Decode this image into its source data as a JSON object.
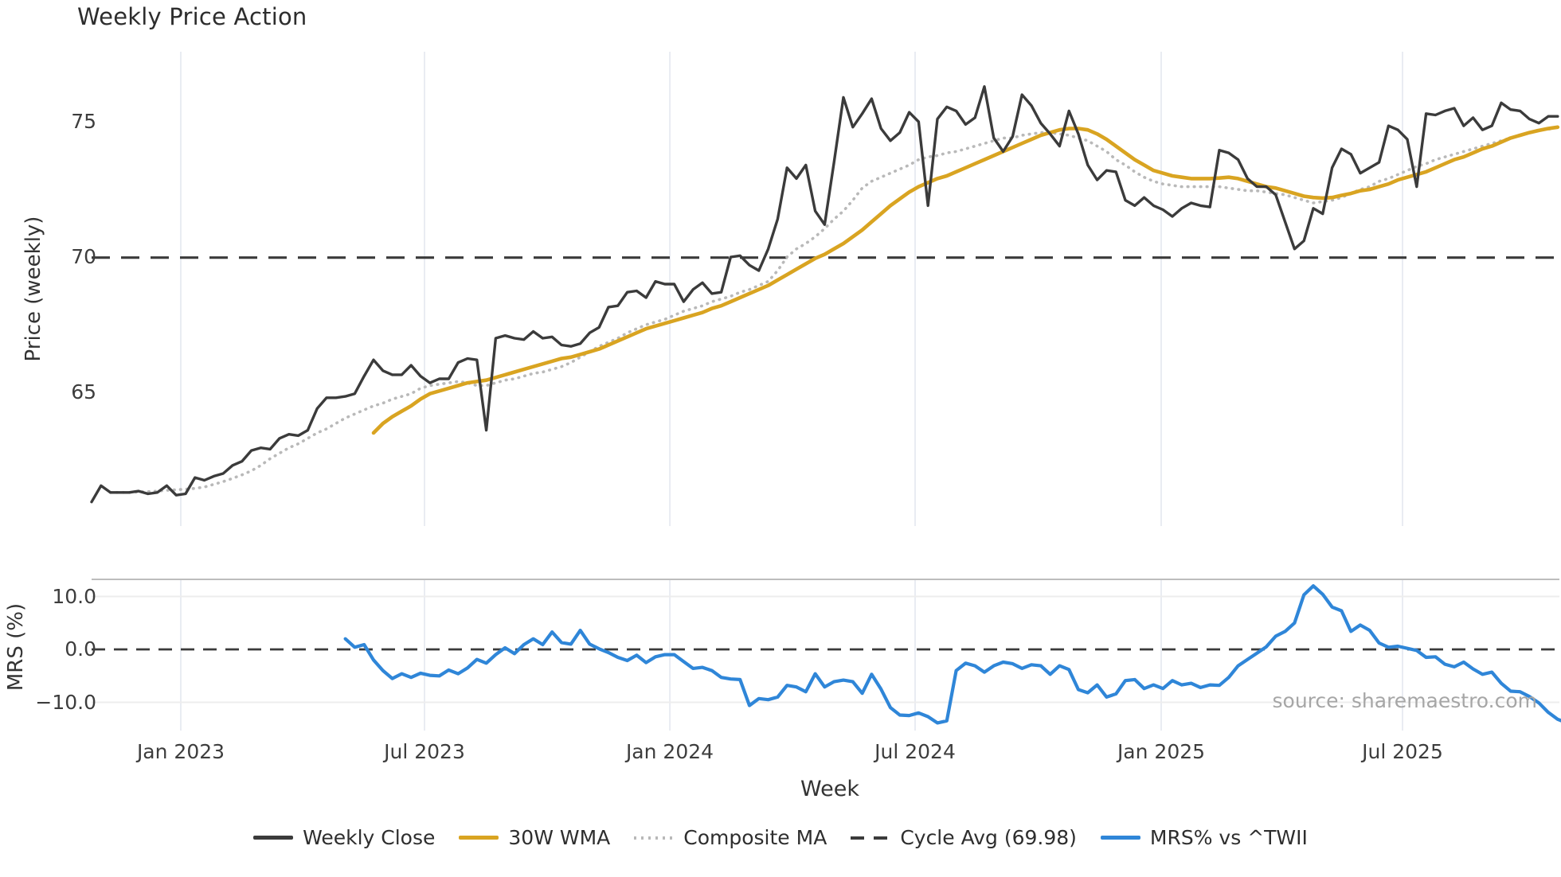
{
  "title": "Weekly Price Action",
  "source_note": "source: sharemaestro.com",
  "colors": {
    "close": "#3b3b3b",
    "wma": "#D9A421",
    "composite": "#b9b9b9",
    "cycle_dash": "#3b3b3b",
    "mrs": "#2F86D8",
    "grid_vertical": "#e9ecf2",
    "grid_horizontal": "#ededed",
    "spine": "#bdbdbd",
    "text": "#3d3d3d"
  },
  "x_axis": {
    "label": "Week",
    "ticks": [
      {
        "label": "Jan 2023",
        "week": 9.49
      },
      {
        "label": "Jul 2023",
        "week": 35.42
      },
      {
        "label": "Jan 2024",
        "week": 61.53
      },
      {
        "label": "Jul 2024",
        "week": 87.63
      },
      {
        "label": "Jan 2025",
        "week": 113.81
      },
      {
        "label": "Jul 2025",
        "week": 139.49
      }
    ]
  },
  "legend": [
    {
      "label": "Weekly Close",
      "swatch": "solid-dark"
    },
    {
      "label": "30W WMA",
      "swatch": "solid-gold"
    },
    {
      "label": "Composite MA",
      "swatch": "dotted-gray"
    },
    {
      "label": "Cycle Avg (69.98)",
      "swatch": "dashed-dark"
    },
    {
      "label": "MRS% vs ^TWII",
      "swatch": "solid-blue"
    }
  ],
  "chart_data": [
    {
      "type": "line",
      "name": "price-panel",
      "ylabel": "Price (weekly)",
      "ylim": [
        60.0,
        77.6
      ],
      "grid": "vertical-only",
      "y_ticks": [
        {
          "label": "75",
          "value": 75
        },
        {
          "label": "70",
          "value": 70
        },
        {
          "label": "65",
          "value": 65
        }
      ],
      "reference_line": {
        "name": "Cycle Avg",
        "value": 69.98
      },
      "series": [
        {
          "name": "Composite MA",
          "style": "dotted",
          "color": "#b9b9b9",
          "width": 3.6,
          "start_week": 2,
          "values": [
            61.3,
            61.3,
            61.3,
            61.32,
            61.33,
            61.35,
            61.38,
            61.4,
            61.42,
            61.45,
            61.5,
            61.6,
            61.7,
            61.82,
            61.95,
            62.1,
            62.3,
            62.55,
            62.75,
            62.95,
            63.1,
            63.3,
            63.5,
            63.65,
            63.85,
            64.05,
            64.2,
            64.35,
            64.5,
            64.6,
            64.75,
            64.85,
            64.95,
            65.15,
            65.25,
            65.3,
            65.35,
            65.4,
            65.35,
            65.25,
            65.25,
            65.35,
            65.45,
            65.5,
            65.6,
            65.7,
            65.75,
            65.85,
            65.95,
            66.1,
            66.3,
            66.5,
            66.7,
            66.85,
            67.0,
            67.2,
            67.35,
            67.5,
            67.6,
            67.7,
            67.85,
            68.0,
            68.1,
            68.2,
            68.35,
            68.45,
            68.55,
            68.7,
            68.8,
            68.95,
            69.1,
            69.5,
            70.0,
            70.3,
            70.5,
            70.75,
            71.05,
            71.4,
            71.7,
            72.1,
            72.55,
            72.8,
            72.95,
            73.1,
            73.25,
            73.4,
            73.6,
            73.7,
            73.75,
            73.85,
            73.9,
            74.0,
            74.1,
            74.2,
            74.3,
            74.4,
            74.4,
            74.5,
            74.55,
            74.6,
            74.6,
            74.55,
            74.5,
            74.4,
            74.3,
            74.1,
            73.9,
            73.6,
            73.4,
            73.15,
            72.95,
            72.8,
            72.7,
            72.65,
            72.6,
            72.6,
            72.6,
            72.6,
            72.6,
            72.55,
            72.5,
            72.45,
            72.45,
            72.4,
            72.35,
            72.3,
            72.2,
            72.1,
            72.0,
            72.05,
            72.1,
            72.2,
            72.35,
            72.5,
            72.6,
            72.8,
            72.9,
            73.05,
            73.2,
            73.35,
            73.45,
            73.6,
            73.7,
            73.8,
            73.9,
            74.0,
            74.1,
            74.2,
            74.3,
            74.4,
            74.5,
            74.6,
            74.7,
            74.72,
            74.8
          ]
        },
        {
          "name": "30W WMA",
          "style": "solid",
          "color": "#D9A421",
          "width": 4.6,
          "start_week": 30,
          "values": [
            63.5,
            63.85,
            64.1,
            64.3,
            64.5,
            64.75,
            64.95,
            65.05,
            65.15,
            65.25,
            65.35,
            65.4,
            65.45,
            65.55,
            65.65,
            65.75,
            65.85,
            65.95,
            66.05,
            66.15,
            66.25,
            66.3,
            66.4,
            66.5,
            66.6,
            66.75,
            66.9,
            67.05,
            67.2,
            67.35,
            67.45,
            67.55,
            67.65,
            67.75,
            67.85,
            67.95,
            68.1,
            68.2,
            68.35,
            68.5,
            68.65,
            68.8,
            68.95,
            69.15,
            69.35,
            69.55,
            69.75,
            69.95,
            70.1,
            70.3,
            70.5,
            70.75,
            71.0,
            71.3,
            71.6,
            71.9,
            72.15,
            72.4,
            72.6,
            72.75,
            72.9,
            73.0,
            73.15,
            73.3,
            73.45,
            73.6,
            73.75,
            73.9,
            74.05,
            74.2,
            74.35,
            74.5,
            74.6,
            74.7,
            74.75,
            74.75,
            74.7,
            74.55,
            74.35,
            74.1,
            73.85,
            73.6,
            73.4,
            73.2,
            73.1,
            73.0,
            72.95,
            72.9,
            72.9,
            72.9,
            72.92,
            72.95,
            72.9,
            72.8,
            72.7,
            72.6,
            72.55,
            72.45,
            72.35,
            72.25,
            72.2,
            72.18,
            72.2,
            72.28,
            72.35,
            72.45,
            72.5,
            72.6,
            72.7,
            72.85,
            72.95,
            73.05,
            73.15,
            73.3,
            73.45,
            73.6,
            73.7,
            73.85,
            74.0,
            74.1,
            74.25,
            74.4,
            74.5,
            74.6,
            74.68,
            74.75,
            74.8
          ]
        },
        {
          "name": "Weekly Close",
          "style": "solid",
          "color": "#3b3b3b",
          "width": 3.4,
          "start_week": 0,
          "values": [
            60.95,
            61.55,
            61.3,
            61.3,
            61.3,
            61.35,
            61.25,
            61.3,
            61.55,
            61.2,
            61.25,
            61.85,
            61.75,
            61.9,
            62.0,
            62.3,
            62.45,
            62.85,
            62.95,
            62.9,
            63.3,
            63.45,
            63.4,
            63.6,
            64.4,
            64.8,
            64.8,
            64.85,
            64.95,
            65.6,
            66.2,
            65.8,
            65.65,
            65.65,
            66.0,
            65.6,
            65.35,
            65.5,
            65.5,
            66.1,
            66.25,
            66.2,
            63.6,
            67.0,
            67.1,
            67.0,
            66.95,
            67.25,
            67.0,
            67.05,
            66.75,
            66.7,
            66.8,
            67.2,
            67.4,
            68.15,
            68.2,
            68.7,
            68.75,
            68.5,
            69.1,
            69.0,
            69.0,
            68.35,
            68.8,
            69.05,
            68.65,
            68.7,
            70.0,
            70.05,
            69.7,
            69.5,
            70.3,
            71.4,
            73.3,
            72.9,
            73.4,
            71.7,
            71.2,
            73.5,
            75.9,
            74.8,
            75.3,
            75.85,
            74.75,
            74.3,
            74.6,
            75.35,
            75.0,
            71.9,
            75.1,
            75.55,
            75.4,
            74.9,
            75.15,
            76.3,
            74.4,
            73.9,
            74.45,
            76.0,
            75.6,
            74.95,
            74.55,
            74.1,
            75.4,
            74.55,
            73.4,
            72.85,
            73.2,
            73.15,
            72.1,
            71.9,
            72.2,
            71.9,
            71.75,
            71.5,
            71.8,
            72.0,
            71.9,
            71.85,
            73.95,
            73.85,
            73.6,
            72.9,
            72.6,
            72.6,
            72.3,
            71.3,
            70.3,
            70.6,
            71.8,
            71.6,
            73.3,
            74.0,
            73.8,
            73.1,
            73.3,
            73.5,
            74.85,
            74.7,
            74.35,
            72.6,
            75.3,
            75.25,
            75.4,
            75.5,
            74.85,
            75.15,
            74.7,
            74.85,
            75.7,
            75.45,
            75.4,
            75.1,
            74.95,
            75.2,
            75.2
          ]
        }
      ]
    },
    {
      "type": "line",
      "name": "mrs-panel",
      "ylabel": "MRS (%)",
      "ylim": [
        -15.5,
        13.2
      ],
      "grid": "horizontal-and-vertical",
      "y_ticks": [
        {
          "label": "10.0",
          "value": 10,
          "gridline": true
        },
        {
          "label": "0.0",
          "value": 0,
          "gridline": false
        },
        {
          "label": "−10.0",
          "value": -10,
          "gridline": true
        }
      ],
      "reference_line": {
        "name": "zero",
        "value": 0
      },
      "series": [
        {
          "name": "MRS% vs ^TWII",
          "style": "solid",
          "color": "#2F86D8",
          "width": 4.2,
          "start_week": 27,
          "values": [
            2.0,
            0.4,
            0.9,
            -2.0,
            -4.0,
            -5.5,
            -4.6,
            -5.3,
            -4.5,
            -4.9,
            -5.0,
            -3.9,
            -4.6,
            -3.5,
            -1.9,
            -2.6,
            -1.0,
            0.3,
            -0.8,
            0.9,
            2.0,
            0.9,
            3.3,
            1.3,
            1.0,
            3.6,
            1.0,
            0.1,
            -0.6,
            -1.5,
            -2.1,
            -1.1,
            -2.5,
            -1.4,
            -1.0,
            -1.0,
            -2.3,
            -3.6,
            -3.4,
            -4.0,
            -5.3,
            -5.6,
            -5.7,
            -10.6,
            -9.3,
            -9.5,
            -9.0,
            -6.8,
            -7.1,
            -8.0,
            -4.6,
            -7.1,
            -6.1,
            -5.8,
            -6.1,
            -8.3,
            -4.7,
            -7.5,
            -11.0,
            -12.4,
            -12.5,
            -12.0,
            -12.7,
            -13.9,
            -13.5,
            -4.0,
            -2.6,
            -3.1,
            -4.3,
            -3.1,
            -2.4,
            -2.7,
            -3.6,
            -2.9,
            -3.1,
            -4.7,
            -3.1,
            -3.8,
            -7.6,
            -8.2,
            -6.7,
            -9.0,
            -8.4,
            -5.9,
            -5.7,
            -7.4,
            -6.7,
            -7.4,
            -5.9,
            -6.7,
            -6.4,
            -7.2,
            -6.7,
            -6.8,
            -5.3,
            -3.1,
            -1.9,
            -0.7,
            0.5,
            2.5,
            3.4,
            5.0,
            10.3,
            12.0,
            10.4,
            8.0,
            7.3,
            3.4,
            4.6,
            3.6,
            1.2,
            0.4,
            0.6,
            0.2,
            -0.2,
            -1.5,
            -1.4,
            -2.8,
            -3.3,
            -2.4,
            -3.7,
            -4.7,
            -4.3,
            -6.4,
            -7.9,
            -8.0,
            -8.9,
            -10.1,
            -11.9,
            -13.2,
            -13.9
          ]
        }
      ]
    }
  ]
}
